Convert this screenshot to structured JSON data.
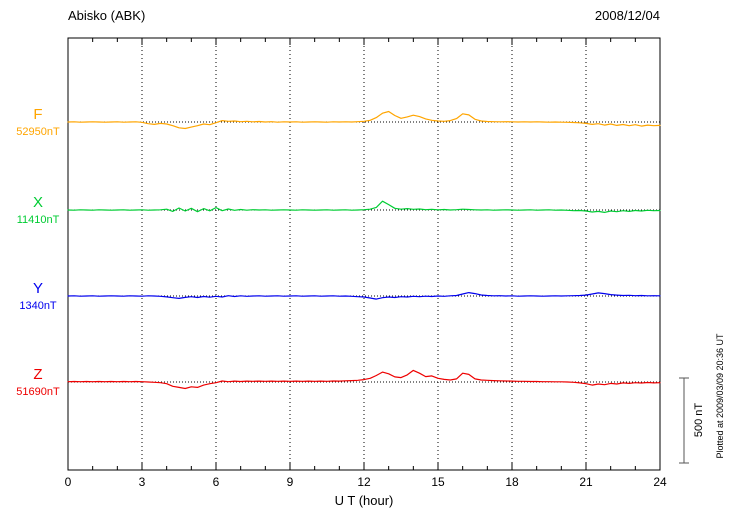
{
  "header": {
    "station": "Abisko (ABK)",
    "date": "2008/12/04"
  },
  "footer_note": "Plotted at 2009/03/09 20:36 UT",
  "scale_bar": {
    "label": "500 nT",
    "nT": 500
  },
  "chart_data": {
    "type": "line",
    "title": "Abisko (ABK) magnetogram 2008/12/04",
    "xlabel": "U T (hour)",
    "ylabel": "",
    "x_range": [
      0,
      24
    ],
    "x_ticks": [
      0,
      3,
      6,
      9,
      12,
      15,
      18,
      21,
      24
    ],
    "x_step_hours": 0.25,
    "scale_reference_nT": 500,
    "values_unit": "nT deviation from component baseline",
    "grid": "dotted vertical at 3-hour ticks, dotted horizontal baselines",
    "legend_position": "left margin",
    "series": [
      {
        "name": "F",
        "label": "F",
        "baseline_label": "52950nT",
        "baseline_nT": 52950,
        "color": "#FFA500",
        "values": [
          0,
          1,
          -1,
          0,
          1,
          0,
          -1,
          0,
          1,
          -1,
          0,
          1,
          -2,
          -10,
          -14,
          -8,
          -12,
          -22,
          -34,
          -38,
          -30,
          -22,
          -12,
          -16,
          -4,
          8,
          4,
          6,
          2,
          4,
          1,
          3,
          0,
          2,
          -1,
          1,
          0,
          1,
          -1,
          0,
          1,
          0,
          -1,
          1,
          0,
          1,
          0,
          2,
          4,
          10,
          26,
          52,
          62,
          38,
          22,
          30,
          40,
          32,
          18,
          10,
          6,
          4,
          8,
          20,
          48,
          42,
          16,
          6,
          3,
          2,
          1,
          2,
          1,
          0,
          1,
          0,
          1,
          0,
          -1,
          0,
          -1,
          -2,
          -3,
          -5,
          -8,
          -14,
          -10,
          -18,
          -12,
          -20,
          -15,
          -22,
          -16,
          -24,
          -18,
          -22,
          -20
        ]
      },
      {
        "name": "X",
        "label": "X",
        "baseline_label": "11410nT",
        "baseline_nT": 11410,
        "color": "#00CC33",
        "values": [
          0,
          -1,
          1,
          0,
          -1,
          1,
          0,
          -1,
          0,
          1,
          -1,
          0,
          1,
          -1,
          0,
          1,
          5,
          -8,
          12,
          -6,
          10,
          -10,
          8,
          -5,
          14,
          -4,
          6,
          -2,
          3,
          -1,
          2,
          0,
          1,
          -1,
          0,
          1,
          0,
          -1,
          1,
          0,
          -1,
          0,
          1,
          -1,
          0,
          1,
          -1,
          0,
          2,
          5,
          15,
          52,
          32,
          10,
          5,
          8,
          4,
          6,
          2,
          4,
          1,
          3,
          0,
          2,
          5,
          3,
          1,
          0,
          1,
          -1,
          0,
          1,
          0,
          -1,
          0,
          1,
          -1,
          0,
          1,
          -1,
          0,
          -2,
          -4,
          -3,
          -6,
          -12,
          -8,
          -14,
          -6,
          -10,
          -4,
          -8,
          -3,
          -6,
          -2,
          -4,
          -3
        ]
      },
      {
        "name": "Y",
        "label": "Y",
        "baseline_label": "1340nT",
        "baseline_nT": 1340,
        "color": "#0000EE",
        "values": [
          0,
          1,
          -1,
          0,
          1,
          -1,
          0,
          1,
          0,
          -1,
          1,
          0,
          -1,
          1,
          0,
          -2,
          -5,
          -10,
          -14,
          -8,
          -4,
          -9,
          -3,
          -7,
          -2,
          -6,
          2,
          -3,
          1,
          -2,
          0,
          1,
          -1,
          0,
          1,
          -1,
          0,
          1,
          -1,
          0,
          1,
          -1,
          0,
          1,
          -1,
          0,
          -2,
          -4,
          -6,
          -12,
          -18,
          -10,
          -6,
          -9,
          -4,
          -6,
          -2,
          -4,
          -1,
          -3,
          0,
          -2,
          1,
          3,
          12,
          20,
          14,
          6,
          3,
          1,
          2,
          0,
          1,
          -1,
          0,
          1,
          0,
          -1,
          0,
          1,
          0,
          1,
          2,
          3,
          5,
          12,
          18,
          14,
          8,
          5,
          3,
          4,
          2,
          3,
          1,
          2,
          1
        ]
      },
      {
        "name": "Z",
        "label": "Z",
        "baseline_label": "51690nT",
        "baseline_nT": 51690,
        "color": "#EE0000",
        "values": [
          2,
          3,
          2,
          3,
          2,
          3,
          2,
          3,
          2,
          3,
          2,
          3,
          2,
          0,
          -2,
          -4,
          -10,
          -25,
          -32,
          -38,
          -28,
          -32,
          -18,
          -10,
          -4,
          6,
          2,
          5,
          3,
          5,
          4,
          5,
          4,
          5,
          4,
          5,
          4,
          5,
          4,
          5,
          4,
          5,
          4,
          6,
          5,
          7,
          8,
          10,
          14,
          22,
          38,
          58,
          48,
          30,
          26,
          42,
          68,
          52,
          32,
          36,
          22,
          15,
          12,
          18,
          52,
          45,
          18,
          12,
          10,
          8,
          7,
          6,
          5,
          4,
          4,
          3,
          3,
          2,
          2,
          1,
          1,
          0,
          -2,
          -5,
          -10,
          -18,
          -12,
          -16,
          -8,
          -12,
          -5,
          -8,
          -4,
          -6,
          -3,
          -5,
          -4
        ]
      }
    ]
  }
}
